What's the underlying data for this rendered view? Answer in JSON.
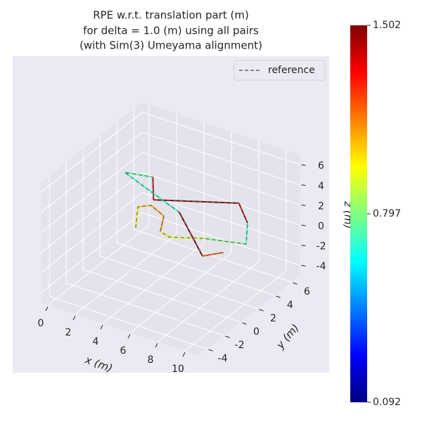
{
  "chart_data": {
    "type": "trajectory3d",
    "title": [
      "RPE w.r.t. translation part (m)",
      "for delta = 1.0 (m) using all pairs",
      "(with Sim(3) Umeyama alignment)"
    ],
    "xlabel": "x (m)",
    "ylabel": "y (m)",
    "zlabel": "z (m)",
    "xlim": [
      -0.5,
      11
    ],
    "ylim": [
      -5,
      7
    ],
    "zlim": [
      -5,
      7
    ],
    "xticks": [
      0,
      2,
      4,
      6,
      8,
      10
    ],
    "yticks": [
      -4,
      -2,
      0,
      2,
      4,
      6
    ],
    "zticks": [
      -4,
      -2,
      0,
      2,
      4,
      6
    ],
    "x": [
      2.1,
      0.85,
      1.43,
      2.77,
      3.6,
      4.4,
      6.29,
      8.82,
      7.52,
      7.1,
      2.5,
      2.3,
      0.54,
      3.34,
      7.35,
      8.2
    ],
    "y": [
      2.0,
      4.29,
      4.91,
      4.24,
      2.49,
      2.2,
      3.28,
      4.17,
      6.44,
      6.1,
      3.46,
      3.71,
      3.22,
      5.16,
      1.38,
      2.49
    ],
    "z": [
      -1,
      -1,
      -1,
      -1,
      -1,
      -1,
      -1,
      -1,
      -1,
      1,
      1,
      3,
      3,
      -1,
      -1,
      -1
    ],
    "error": [
      1.0,
      1.05,
      1.1,
      1.15,
      1.0,
      0.95,
      0.8,
      0.7,
      1.45,
      1.5,
      1.4,
      0.75,
      0.7,
      1.5,
      1.2,
      1.3
    ],
    "colormap": "jet",
    "clim": [
      0.092,
      1.502
    ],
    "cticks": [
      0.092,
      0.797,
      1.502
    ],
    "legend": {
      "label": "reference",
      "color": "#666666",
      "loc": "upper right"
    },
    "grid": true
  }
}
